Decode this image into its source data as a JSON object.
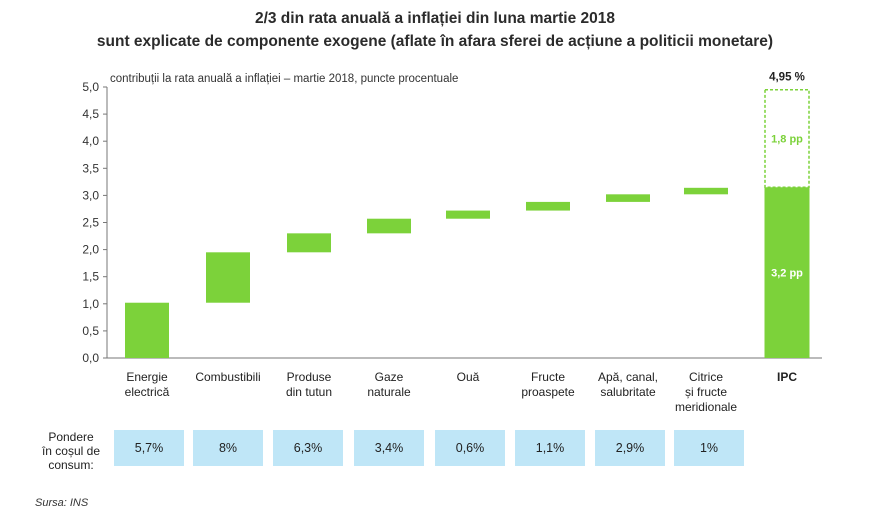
{
  "title_line1": "2/3 din rata anuală a inflației din luna martie 2018",
  "title_line2": "sunt explicate de componente exogene (aflate în afara sferei de acțiune a politicii monetare)",
  "source": "Sursa: INS",
  "weights": {
    "label_lines": [
      "Pondere",
      "în coșul de",
      "consum:"
    ],
    "values": [
      "5,7%",
      "8%",
      "6,3%",
      "3,4%",
      "0,6%",
      "1,1%",
      "2,9%",
      "1%"
    ]
  },
  "chart_data": {
    "type": "bar",
    "subtype": "waterfall",
    "subtitle": "contribuții la rata anuală a inflației – martie 2018, puncte procentuale",
    "ylim": [
      0,
      5
    ],
    "yticks": [
      "0,0",
      "0,5",
      "1,0",
      "1,5",
      "2,0",
      "2,5",
      "3,0",
      "3,5",
      "4,0",
      "4,5",
      "5,0"
    ],
    "ytick_values": [
      0,
      0.5,
      1,
      1.5,
      2,
      2.5,
      3,
      3.5,
      4,
      4.5,
      5
    ],
    "categories": [
      [
        "Energie",
        "electrică"
      ],
      [
        "Combustibili"
      ],
      [
        "Produse",
        "din tutun"
      ],
      [
        "Gaze",
        "naturale"
      ],
      [
        "Ouă"
      ],
      [
        "Fructe",
        "proaspete"
      ],
      [
        "Apă, canal,",
        "salubritate"
      ],
      [
        "Citrice",
        "și fructe",
        "meridionale"
      ],
      [
        "IPC"
      ]
    ],
    "bars": [
      {
        "start": 0,
        "end": 1.02
      },
      {
        "start": 1.02,
        "end": 1.95
      },
      {
        "start": 1.95,
        "end": 2.3
      },
      {
        "start": 2.3,
        "end": 2.57
      },
      {
        "start": 2.57,
        "end": 2.72
      },
      {
        "start": 2.72,
        "end": 2.88
      },
      {
        "start": 2.88,
        "end": 3.02
      },
      {
        "start": 3.02,
        "end": 3.14
      }
    ],
    "total": {
      "value": 4.95,
      "label": "4,95 %",
      "exogenous": 3.15,
      "exogenous_label": "3,2 pp",
      "rest": 1.8,
      "rest_label": "1,8 pp"
    },
    "colors": {
      "bar": "#7cd23a",
      "axis": "#777777",
      "weight_box": "#bfe6f7"
    }
  }
}
